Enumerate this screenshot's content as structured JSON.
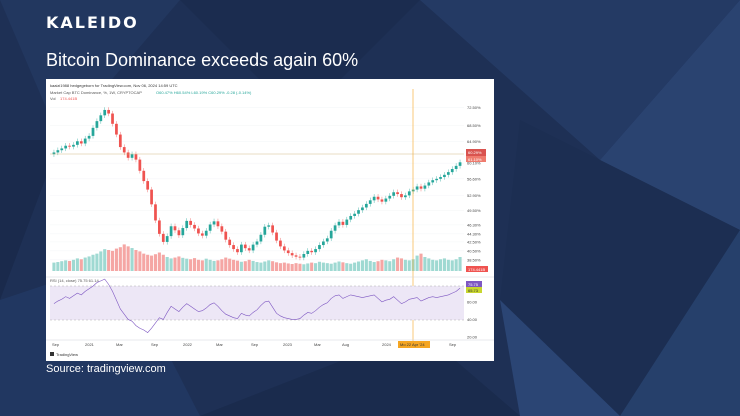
{
  "brand": "KALEIDO",
  "headline": "Bitcoin Dominance exceeds again 60%",
  "source": "Source: tradingview.com",
  "chart_data": {
    "type": "candlestick",
    "published_by": "kaaizi1988 hedgegeborn for TradingView.com, Nov 06, 2024 14:59 UTC",
    "legend": "Market Cap BTC Dominance, %, 1W, CRYPTOCAP",
    "legend_values": "O60.47%  H60.54%  L60.19%  C60.29%  -0.28 (-0.14%)",
    "volume_label": "Vol",
    "volume_value": "174.441B",
    "y_ticks": [
      "72.50%",
      "68.50%",
      "64.90%",
      "60.10%",
      "56.60%",
      "52.90%",
      "49.50%",
      "46.30%",
      "44.30%",
      "42.50%",
      "40.50%",
      "38.50%"
    ],
    "price_label": "60.29%",
    "price_label_2": "61.10%",
    "volume_axis_label": "174.441B",
    "rsi_legend": "RSI (14, close)  75.75  61.14",
    "rsi_ticks": [
      "80.00",
      "60.00",
      "40.00",
      "20.00"
    ],
    "rsi_value": "75.75",
    "rsi_value_2": "65.73",
    "x_ticks": [
      "Sep",
      "2021",
      "Mar",
      "Sep",
      "2022",
      "Mar",
      "Sep",
      "2023",
      "Mar",
      "Aug",
      "2024",
      "Mar",
      "Sep"
    ],
    "crosshair_label": "Mo 22 Apr '24",
    "footer": "TradingView",
    "series": [
      {
        "name": "BTC Dominance",
        "values": [
          62.5,
          63.0,
          63.4,
          64.0,
          63.8,
          64.2,
          65.0,
          64.5,
          65.6,
          66.2,
          68.0,
          69.5,
          70.8,
          72.0,
          71.2,
          68.9,
          66.5,
          63.7,
          62.5,
          61.3,
          62.1,
          60.9,
          58.4,
          56.1,
          54.2,
          50.9,
          47.3,
          44.3,
          42.5,
          43.8,
          46.0,
          45.1,
          44.0,
          45.6,
          47.2,
          46.3,
          45.5,
          44.4,
          43.9,
          45.0,
          46.4,
          47.1,
          46.0,
          44.8,
          43.0,
          41.8,
          40.9,
          40.2,
          41.9,
          41.1,
          40.6,
          41.9,
          42.6,
          44.1,
          45.9,
          46.2,
          44.6,
          42.8,
          41.5,
          40.6,
          40.0,
          39.5,
          39.2,
          39.0,
          39.8,
          40.5,
          40.2,
          40.9,
          41.8,
          42.6,
          43.3,
          45.0,
          46.2,
          47.0,
          46.3,
          47.5,
          48.3,
          48.8,
          49.6,
          50.2,
          51.0,
          51.8,
          52.6,
          52.0,
          51.5,
          52.2,
          52.8,
          53.6,
          53.2,
          52.5,
          52.9,
          53.8,
          54.2,
          54.9,
          54.4,
          55.1,
          55.8,
          56.3,
          56.6,
          57.0,
          57.5,
          58.1,
          58.8,
          59.5,
          60.3
        ]
      },
      {
        "name": "RSI",
        "values": [
          58,
          61,
          63,
          66,
          64,
          67,
          70,
          68,
          72,
          75,
          78,
          82,
          84,
          86,
          80,
          72,
          62,
          52,
          46,
          40,
          38,
          33,
          30,
          28,
          25,
          30,
          36,
          42,
          40,
          48,
          55,
          52,
          49,
          54,
          58,
          55,
          52,
          49,
          50,
          53,
          57,
          59,
          55,
          50,
          46,
          44,
          42,
          41,
          47,
          45,
          44,
          48,
          51,
          56,
          60,
          61,
          54,
          47,
          44,
          42,
          41,
          40,
          40,
          41,
          45,
          48,
          47,
          50,
          54,
          57,
          59,
          64,
          67,
          68,
          64,
          66,
          68,
          67,
          66,
          65,
          66,
          67,
          68,
          64,
          60,
          62,
          63,
          66,
          62,
          58,
          60,
          63,
          64,
          65,
          61,
          63,
          65,
          66,
          65,
          66,
          67,
          68,
          70,
          72,
          75.75
        ]
      }
    ],
    "volume": [
      0.3,
      0.32,
      0.35,
      0.38,
      0.36,
      0.4,
      0.45,
      0.42,
      0.48,
      0.52,
      0.58,
      0.62,
      0.7,
      0.78,
      0.75,
      0.72,
      0.8,
      0.85,
      0.95,
      0.88,
      0.82,
      0.75,
      0.7,
      0.62,
      0.58,
      0.55,
      0.6,
      0.66,
      0.58,
      0.5,
      0.45,
      0.48,
      0.52,
      0.47,
      0.44,
      0.42,
      0.46,
      0.4,
      0.38,
      0.44,
      0.4,
      0.36,
      0.38,
      0.42,
      0.48,
      0.44,
      0.4,
      0.37,
      0.33,
      0.35,
      0.4,
      0.36,
      0.32,
      0.3,
      0.34,
      0.38,
      0.35,
      0.31,
      0.28,
      0.3,
      0.27,
      0.25,
      0.28,
      0.26,
      0.24,
      0.27,
      0.3,
      0.28,
      0.33,
      0.3,
      0.28,
      0.26,
      0.3,
      0.34,
      0.31,
      0.28,
      0.26,
      0.3,
      0.34,
      0.38,
      0.42,
      0.36,
      0.32,
      0.35,
      0.4,
      0.38,
      0.35,
      0.42,
      0.48,
      0.45,
      0.4,
      0.38,
      0.42,
      0.55,
      0.62,
      0.5,
      0.45,
      0.4,
      0.38,
      0.42,
      0.45,
      0.4,
      0.38,
      0.42,
      0.5
    ],
    "colors": {
      "up": "#26a69a",
      "down": "#ef5350",
      "rsi": "#7e57c2",
      "crosshair": "#f5a623"
    }
  }
}
